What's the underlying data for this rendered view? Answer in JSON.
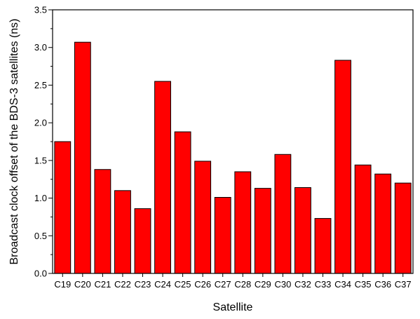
{
  "chart_data": {
    "type": "bar",
    "xlabel": "Satellite",
    "ylabel": "Broadcast clock offset of the BDS-3 satellites (ns)",
    "categories": [
      "C19",
      "C20",
      "C21",
      "C22",
      "C23",
      "C24",
      "C25",
      "C26",
      "C27",
      "C28",
      "C29",
      "C30",
      "C32",
      "C33",
      "C34",
      "C35",
      "C36",
      "C37"
    ],
    "values": [
      1.75,
      3.07,
      1.38,
      1.1,
      0.86,
      2.55,
      1.88,
      1.49,
      1.01,
      1.35,
      1.13,
      1.58,
      1.14,
      0.73,
      2.83,
      1.44,
      1.32,
      1.2
    ],
    "ylim": [
      0,
      3.5
    ],
    "yticks": [
      "0.0",
      "0.5",
      "1.0",
      "1.5",
      "2.0",
      "2.5",
      "3.0",
      "3.5"
    ],
    "grid": false,
    "bar_color": "#ff0000",
    "bar_edge_color": "#000000"
  }
}
